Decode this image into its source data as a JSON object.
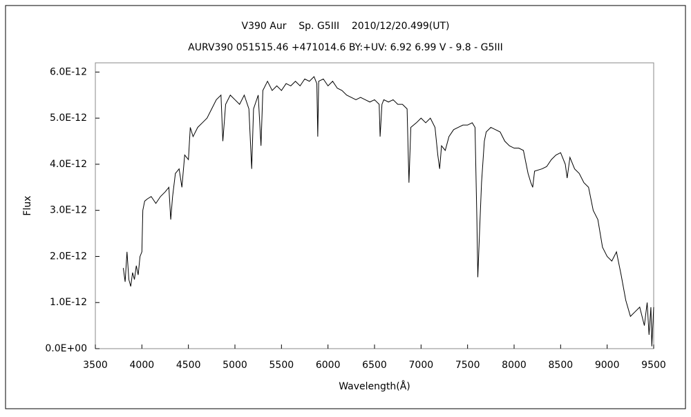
{
  "chart_data": {
    "type": "line",
    "title": "V390 Aur    Sp. G5III    2010/12/20.499(UT)",
    "subtitle": "AURV390 051515.46 +471014.6 BY:+UV: 6.92 6.99 V - 9.8 - G5III",
    "x_label": "Wavelength(Å)",
    "y_label": "Flux",
    "xlim": [
      3500,
      9500
    ],
    "ylim": [
      0,
      6.2e-12
    ],
    "xticks": [
      3500,
      4000,
      4500,
      5000,
      5500,
      6000,
      6500,
      7000,
      7500,
      8000,
      8500,
      9000,
      9500
    ],
    "yticks": [
      {
        "value": 0,
        "label": "0.0E+00"
      },
      {
        "value": 1e-12,
        "label": "1.0E-12"
      },
      {
        "value": 2e-12,
        "label": "2.0E-12"
      },
      {
        "value": 3e-12,
        "label": "3.0E-12"
      },
      {
        "value": 4e-12,
        "label": "4.0E-12"
      },
      {
        "value": 5e-12,
        "label": "5.0E-12"
      },
      {
        "value": 6e-12,
        "label": "6.0E-12"
      }
    ],
    "grid": false,
    "x": [
      3800,
      3820,
      3840,
      3860,
      3880,
      3900,
      3920,
      3940,
      3960,
      3980,
      4000,
      4010,
      4030,
      4060,
      4100,
      4150,
      4200,
      4250,
      4290,
      4310,
      4330,
      4360,
      4400,
      4430,
      4460,
      4500,
      4520,
      4550,
      4600,
      4650,
      4700,
      4750,
      4800,
      4850,
      4870,
      4900,
      4950,
      5000,
      5050,
      5100,
      5150,
      5180,
      5200,
      5250,
      5280,
      5300,
      5350,
      5400,
      5450,
      5500,
      5550,
      5600,
      5650,
      5700,
      5750,
      5800,
      5850,
      5880,
      5890,
      5900,
      5950,
      6000,
      6050,
      6100,
      6150,
      6200,
      6250,
      6300,
      6350,
      6400,
      6450,
      6500,
      6550,
      6560,
      6580,
      6600,
      6650,
      6700,
      6750,
      6800,
      6850,
      6870,
      6890,
      6950,
      7000,
      7050,
      7100,
      7150,
      7180,
      7200,
      7220,
      7260,
      7300,
      7350,
      7400,
      7450,
      7500,
      7550,
      7580,
      7600,
      7610,
      7630,
      7650,
      7680,
      7700,
      7750,
      7800,
      7850,
      7900,
      7950,
      8000,
      8050,
      8100,
      8150,
      8180,
      8200,
      8220,
      8300,
      8350,
      8400,
      8450,
      8500,
      8550,
      8570,
      8600,
      8650,
      8700,
      8750,
      8800,
      8850,
      8900,
      8950,
      9000,
      9050,
      9100,
      9150,
      9200,
      9250,
      9300,
      9350,
      9400,
      9430,
      9450,
      9470,
      9480,
      9500
    ],
    "series": [
      {
        "name": "Flux",
        "color": "#000000",
        "values": [
          1.75e-12,
          1.45e-12,
          2.1e-12,
          1.5e-12,
          1.35e-12,
          1.65e-12,
          1.5e-12,
          1.8e-12,
          1.6e-12,
          2e-12,
          2.1e-12,
          3e-12,
          3.2e-12,
          3.25e-12,
          3.3e-12,
          3.15e-12,
          3.3e-12,
          3.4e-12,
          3.5e-12,
          2.8e-12,
          3.3e-12,
          3.8e-12,
          3.9e-12,
          3.5e-12,
          4.2e-12,
          4.1e-12,
          4.8e-12,
          4.6e-12,
          4.8e-12,
          4.9e-12,
          5e-12,
          5.2e-12,
          5.4e-12,
          5.5e-12,
          4.5e-12,
          5.3e-12,
          5.5e-12,
          5.4e-12,
          5.3e-12,
          5.5e-12,
          5.2e-12,
          3.9e-12,
          5.2e-12,
          5.5e-12,
          4.4e-12,
          5.6e-12,
          5.8e-12,
          5.6e-12,
          5.7e-12,
          5.6e-12,
          5.75e-12,
          5.7e-12,
          5.8e-12,
          5.7e-12,
          5.85e-12,
          5.8e-12,
          5.9e-12,
          5.75e-12,
          4.6e-12,
          5.8e-12,
          5.85e-12,
          5.7e-12,
          5.8e-12,
          5.65e-12,
          5.6e-12,
          5.5e-12,
          5.45e-12,
          5.4e-12,
          5.45e-12,
          5.4e-12,
          5.35e-12,
          5.4e-12,
          5.3e-12,
          4.6e-12,
          5.3e-12,
          5.4e-12,
          5.35e-12,
          5.4e-12,
          5.3e-12,
          5.3e-12,
          5.2e-12,
          3.6e-12,
          4.8e-12,
          4.9e-12,
          5e-12,
          4.9e-12,
          5e-12,
          4.8e-12,
          4.2e-12,
          3.9e-12,
          4.4e-12,
          4.3e-12,
          4.6e-12,
          4.75e-12,
          4.8e-12,
          4.85e-12,
          4.85e-12,
          4.9e-12,
          4.8e-12,
          2.8e-12,
          1.55e-12,
          2.6e-12,
          3.6e-12,
          4.5e-12,
          4.7e-12,
          4.8e-12,
          4.75e-12,
          4.7e-12,
          4.5e-12,
          4.4e-12,
          4.35e-12,
          4.35e-12,
          4.3e-12,
          3.8e-12,
          3.6e-12,
          3.5e-12,
          3.85e-12,
          3.9e-12,
          3.95e-12,
          4.1e-12,
          4.2e-12,
          4.25e-12,
          4e-12,
          3.7e-12,
          4.15e-12,
          3.9e-12,
          3.8e-12,
          3.6e-12,
          3.5e-12,
          3e-12,
          2.8e-12,
          2.2e-12,
          2e-12,
          1.9e-12,
          2.1e-12,
          1.6e-12,
          1.05e-12,
          7e-13,
          8e-13,
          9e-13,
          5e-13,
          1e-12,
          3e-13,
          9e-13,
          5e-14,
          9e-13
        ]
      }
    ]
  }
}
